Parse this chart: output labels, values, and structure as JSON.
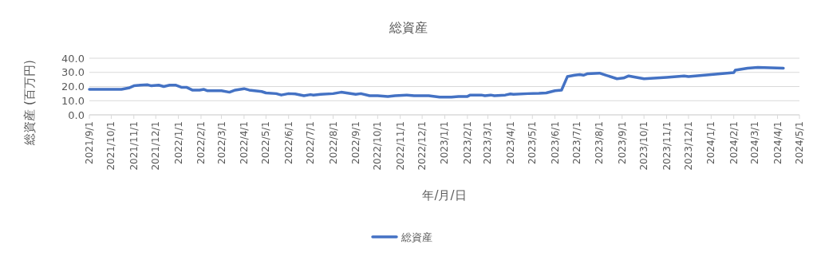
{
  "chart_data": {
    "type": "line",
    "title": "総資産",
    "xlabel": "年/月/日",
    "ylabel": "総資産 (百万円)",
    "legend": "bottom",
    "grid": "y",
    "marker": "none",
    "line_style": "solid",
    "xlim": [
      "2021-09-01",
      "2024-05-01"
    ],
    "xticks": [
      {
        "value": "2021-09-01",
        "label": "2021/9/1"
      },
      {
        "value": "2021-10-01",
        "label": "2021/10/1"
      },
      {
        "value": "2021-11-01",
        "label": "2021/11/1"
      },
      {
        "value": "2021-12-01",
        "label": "2021/12/1"
      },
      {
        "value": "2022-01-01",
        "label": "2022/1/1"
      },
      {
        "value": "2022-02-01",
        "label": "2022/2/1"
      },
      {
        "value": "2022-03-01",
        "label": "2022/3/1"
      },
      {
        "value": "2022-04-01",
        "label": "2022/4/1"
      },
      {
        "value": "2022-05-01",
        "label": "2022/5/1"
      },
      {
        "value": "2022-06-01",
        "label": "2022/6/1"
      },
      {
        "value": "2022-07-01",
        "label": "2022/7/1"
      },
      {
        "value": "2022-08-01",
        "label": "2022/8/1"
      },
      {
        "value": "2022-09-01",
        "label": "2022/9/1"
      },
      {
        "value": "2022-10-01",
        "label": "2022/10/1"
      },
      {
        "value": "2022-11-01",
        "label": "2022/11/1"
      },
      {
        "value": "2022-12-01",
        "label": "2022/12/1"
      },
      {
        "value": "2023-01-01",
        "label": "2023/1/1"
      },
      {
        "value": "2023-02-01",
        "label": "2023/2/1"
      },
      {
        "value": "2023-03-01",
        "label": "2023/3/1"
      },
      {
        "value": "2023-04-01",
        "label": "2023/4/1"
      },
      {
        "value": "2023-05-01",
        "label": "2023/5/1"
      },
      {
        "value": "2023-06-01",
        "label": "2023/6/1"
      },
      {
        "value": "2023-07-01",
        "label": "2023/7/1"
      },
      {
        "value": "2023-08-01",
        "label": "2023/8/1"
      },
      {
        "value": "2023-09-01",
        "label": "2023/9/1"
      },
      {
        "value": "2023-10-01",
        "label": "2023/10/1"
      },
      {
        "value": "2023-11-01",
        "label": "2023/11/1"
      },
      {
        "value": "2023-12-01",
        "label": "2023/12/1"
      },
      {
        "value": "2024-01-01",
        "label": "2024/1/1"
      },
      {
        "value": "2024-02-01",
        "label": "2024/2/1"
      },
      {
        "value": "2024-03-01",
        "label": "2024/3/1"
      },
      {
        "value": "2024-04-01",
        "label": "2024/4/1"
      },
      {
        "value": "2024-05-01",
        "label": "2024/5/1"
      }
    ],
    "ylim": [
      0,
      40
    ],
    "yticks": [
      {
        "value": 0,
        "label": "0.0"
      },
      {
        "value": 10,
        "label": "10.0"
      },
      {
        "value": 20,
        "label": "20.0"
      },
      {
        "value": 30,
        "label": "30.0"
      },
      {
        "value": 40,
        "label": "40.0"
      }
    ],
    "series": [
      {
        "name": "総資産",
        "color": "#4472c4",
        "x": [
          "2021-09-01",
          "2021-10-15",
          "2021-10-25",
          "2021-11-01",
          "2021-11-10",
          "2021-11-20",
          "2021-11-25",
          "2021-12-05",
          "2021-12-12",
          "2021-12-20",
          "2021-12-28",
          "2022-01-05",
          "2022-01-12",
          "2022-01-20",
          "2022-01-30",
          "2022-02-05",
          "2022-02-10",
          "2022-03-01",
          "2022-03-12",
          "2022-03-20",
          "2022-04-01",
          "2022-04-08",
          "2022-04-25",
          "2022-05-01",
          "2022-05-15",
          "2022-05-22",
          "2022-06-01",
          "2022-06-10",
          "2022-06-22",
          "2022-07-01",
          "2022-07-05",
          "2022-07-15",
          "2022-08-01",
          "2022-08-12",
          "2022-09-01",
          "2022-09-08",
          "2022-09-20",
          "2022-10-01",
          "2022-10-15",
          "2022-10-25",
          "2022-11-10",
          "2022-11-20",
          "2022-12-10",
          "2022-12-25",
          "2023-01-10",
          "2023-01-20",
          "2023-02-01",
          "2023-02-05",
          "2023-02-20",
          "2023-02-25",
          "2023-03-05",
          "2023-03-10",
          "2023-03-25",
          "2023-04-01",
          "2023-04-05",
          "2023-04-25",
          "2023-05-10",
          "2023-05-20",
          "2023-06-01",
          "2023-06-10",
          "2023-06-18",
          "2023-06-28",
          "2023-07-05",
          "2023-07-10",
          "2023-07-15",
          "2023-08-01",
          "2023-08-10",
          "2023-08-25",
          "2023-09-03",
          "2023-09-10",
          "2023-10-01",
          "2023-11-01",
          "2023-11-25",
          "2023-12-01",
          "2024-01-01",
          "2024-02-01",
          "2024-02-03",
          "2024-02-20",
          "2024-03-05",
          "2024-04-09"
        ],
        "values": [
          18,
          18,
          19,
          20.5,
          21,
          21.2,
          20.5,
          21,
          20,
          21,
          21,
          19.5,
          19.5,
          17.5,
          17.5,
          18,
          17,
          17,
          16,
          17.5,
          18.5,
          17.5,
          16.5,
          15.5,
          15,
          14,
          15,
          14.8,
          13.5,
          14.3,
          14,
          14.5,
          15,
          16,
          14.5,
          15,
          13.5,
          13.5,
          13,
          13.5,
          14,
          13.5,
          13.5,
          12.5,
          12.5,
          13,
          13,
          14,
          14,
          13.5,
          14,
          13.5,
          14,
          14.8,
          14.5,
          15,
          15.2,
          15.5,
          17,
          17.5,
          27,
          28,
          28.5,
          28,
          29,
          29.5,
          28,
          25.5,
          26,
          27.5,
          25.5,
          26.5,
          27.5,
          27,
          28.5,
          29.8,
          31.5,
          33,
          33.5,
          33
        ]
      }
    ]
  }
}
